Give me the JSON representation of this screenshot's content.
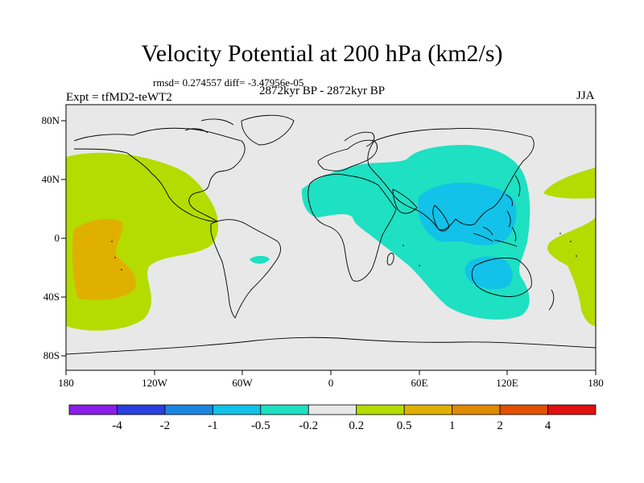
{
  "header": {
    "title": "Velocity Potential at 200 hPa (km2/s)",
    "stats": "rmsd= 0.274557 diff= -3.47956e-05",
    "experiment": "Expt = tfMD2-teWT2",
    "period": "2872kyr BP - 2872kyr BP",
    "season": "JJA"
  },
  "axes": {
    "lat_ticks": [
      "80N",
      "40N",
      "0",
      "40S",
      "80S"
    ],
    "lon_ticks": [
      "180",
      "120W",
      "60W",
      "0",
      "60E",
      "120E",
      "180"
    ]
  },
  "colorbar": {
    "levels": [
      "-4",
      "-2",
      "-1",
      "-0.5",
      "-0.2",
      "0.2",
      "0.5",
      "1",
      "2",
      "4"
    ],
    "colors": [
      "#8a1ee8",
      "#2a3fdc",
      "#1a86e0",
      "#12c2e8",
      "#1ee0c2",
      "#e8e8e8",
      "#b4dc00",
      "#e0b000",
      "#e08a00",
      "#e05000",
      "#e01010"
    ]
  },
  "colors": {
    "neutral": "#e8e8e8",
    "positive_weak": "#b4dc00",
    "positive_mid": "#e0b000",
    "negative_weak": "#1ee0c2",
    "negative_mid": "#12c2e8"
  }
}
